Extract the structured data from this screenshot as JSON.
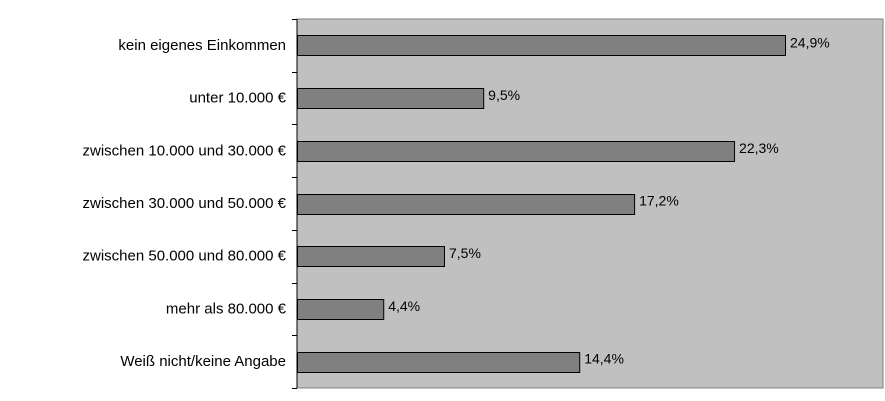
{
  "chart_data": {
    "type": "bar",
    "orientation": "horizontal",
    "categories": [
      "kein eigenes Einkommen",
      "unter 10.000 €",
      "zwischen 10.000 und 30.000 €",
      "zwischen 30.000 und 50.000 €",
      "zwischen 50.000 und 80.000 €",
      "mehr als 80.000 €",
      "Weiß nicht/keine Angabe"
    ],
    "values": [
      24.9,
      9.5,
      22.3,
      17.2,
      7.5,
      4.4,
      14.4
    ],
    "value_labels": [
      "24,9%",
      "9,5%",
      "22,3%",
      "17,2%",
      "7,5%",
      "4,4%",
      "14,4%"
    ],
    "xlim": [
      0,
      30
    ],
    "grid": false,
    "legend": "none",
    "colors": {
      "bar_fill": "#808080",
      "bar_stroke": "#000000",
      "plot_background": "#c0c0c0",
      "axis": "#000000",
      "text": "#000000"
    }
  }
}
